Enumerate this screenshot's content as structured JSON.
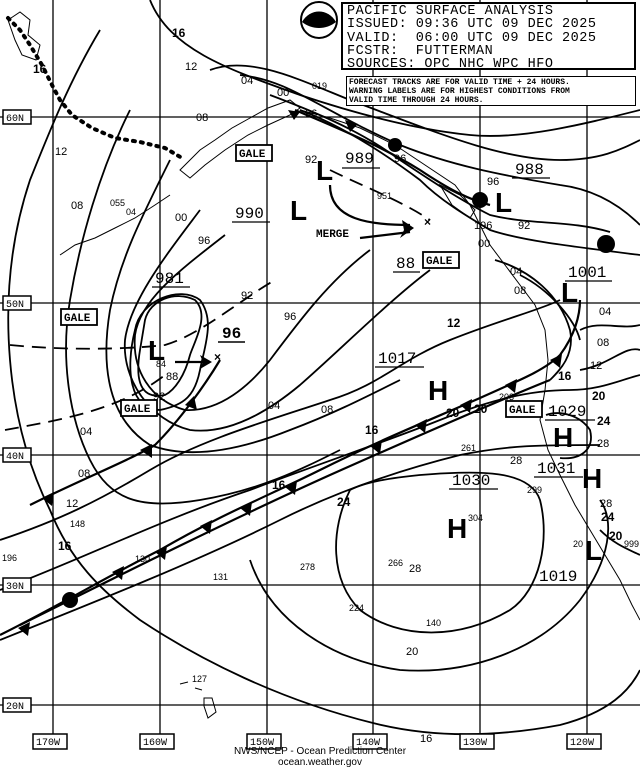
{
  "header": {
    "title": "PACIFIC SURFACE ANALYSIS",
    "issued": "ISSUED: 09:36 UTC 09 DEC 2025",
    "valid": "VALID:  06:00 UTC 09 DEC 2025",
    "forecaster": "FCSTR:  FUTTERMAN",
    "sources": "SOURCES: OPC NHC WPC HFO"
  },
  "notice": [
    "FORECAST TRACKS ARE FOR VALID TIME + 24 HOURS.",
    "WARNING LABELS ARE FOR HIGHEST CONDITIONS FROM",
    "VALID TIME THROUGH 24 HOURS."
  ],
  "credit": [
    "NWS/NCEP - Ocean Prediction Center",
    "ocean.weather.gov"
  ],
  "latitudes": [
    "60N",
    "50N",
    "40N",
    "30N",
    "20N"
  ],
  "longitudes": [
    "170W",
    "160W",
    "150W",
    "140W",
    "130W",
    "120W"
  ],
  "pressure_centers": [
    {
      "type": "L",
      "value": "981"
    },
    {
      "type": "L",
      "value": "989"
    },
    {
      "type": "L",
      "value": "990"
    },
    {
      "type": "L",
      "value": "988"
    },
    {
      "type": "L",
      "value": "1001"
    },
    {
      "type": "H",
      "value": "1017"
    },
    {
      "type": "H",
      "value": "1029"
    },
    {
      "type": "H",
      "value": "1031"
    },
    {
      "type": "H",
      "value": "1030"
    },
    {
      "type": "L",
      "value": "1019"
    }
  ],
  "forecast_labels": [
    "96",
    "88"
  ],
  "warnings": [
    "GALE",
    "GALE",
    "GALE",
    "GALE",
    "GALE"
  ],
  "annotation": "MERGE",
  "isobar_labels": [
    "16",
    "12",
    "16",
    "04",
    "00",
    "08",
    "12",
    "08",
    "00",
    "96",
    "96",
    "96",
    "92",
    "96",
    "196",
    "00",
    "04",
    "08",
    "04",
    "08",
    "12",
    "16",
    "20",
    "24",
    "28",
    "28",
    "24",
    "20",
    "92",
    "96",
    "04",
    "08",
    "12",
    "16",
    "20",
    "24",
    "28",
    "28",
    "88",
    "92",
    "04",
    "08",
    "12",
    "16",
    "20",
    "16",
    "16",
    "20",
    "92",
    "24"
  ],
  "station_values": [
    "148",
    "130",
    "131",
    "278",
    "266",
    "224",
    "140",
    "127",
    "196",
    "261",
    "203",
    "299",
    "304",
    "951",
    "055",
    "04",
    "019",
    "999",
    "20",
    "84"
  ],
  "colors": {
    "ink": "#000000",
    "background": "#ffffff"
  }
}
